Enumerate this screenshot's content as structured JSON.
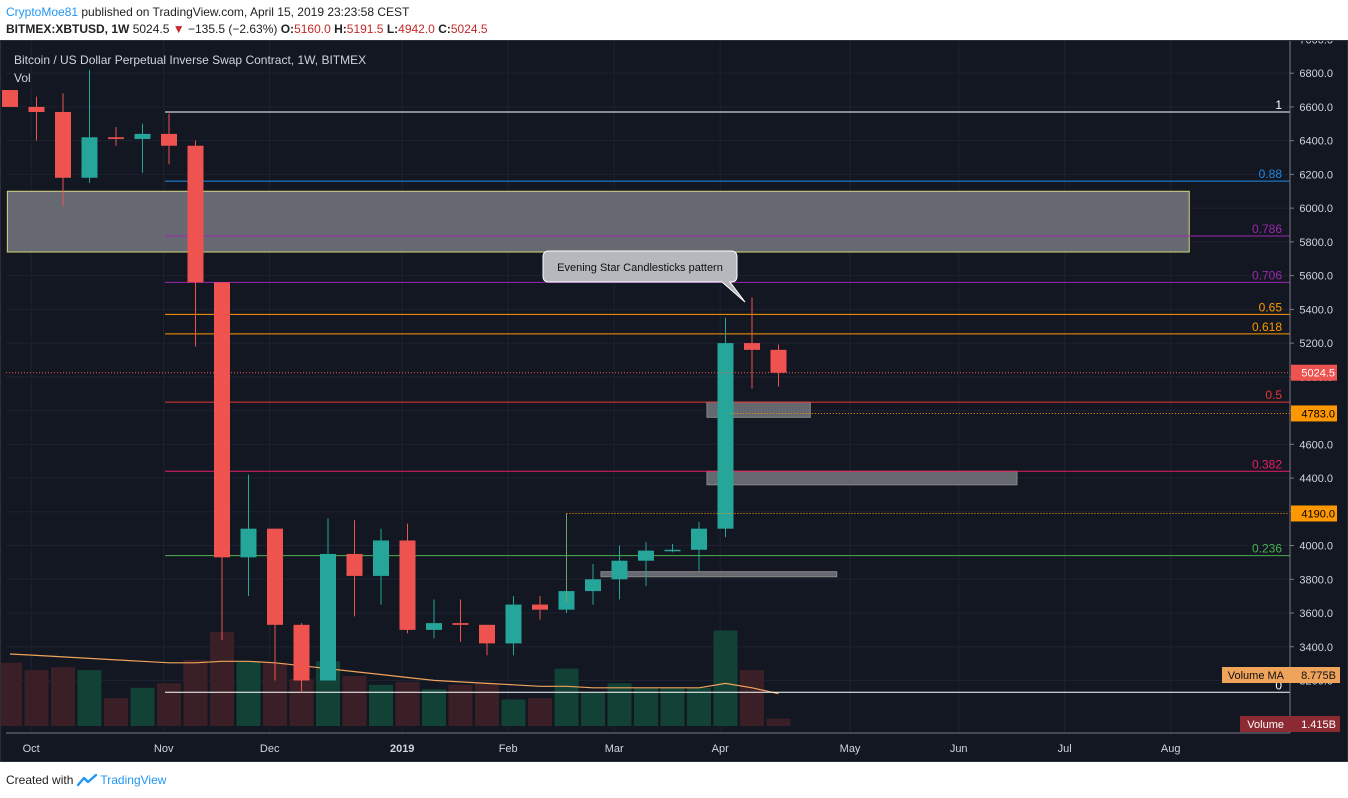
{
  "header": {
    "author": "CryptoMoe81",
    "published": " published on TradingView.com, April 15, 2019 23:23:58 CEST",
    "symbol": "BITMEX:XBTUSD, 1W",
    "last": "5024.5",
    "change": "−135.5 (−2.63%)",
    "o_label": "O:",
    "o": "5160.0",
    "h_label": "H:",
    "h": "5191.5",
    "l_label": "L:",
    "l": "4942.0",
    "c_label": "C:",
    "c": "5024.5"
  },
  "footer": {
    "created_with": "Created with",
    "brand": "TradingView"
  },
  "colors": {
    "background": "#131722",
    "up": "#26a69a",
    "down": "#ef5350",
    "grid": "#1e2230",
    "axis_text": "#d1d4dc"
  },
  "chart_data": {
    "type": "candlestick",
    "title": "Bitcoin / US Dollar Perpetual Inverse Swap Contract, 1W, BITMEX",
    "subtitle": "Vol",
    "ylim": [
      3100,
      7050
    ],
    "y_ticks": [
      3200,
      3400,
      3600,
      3800,
      4000,
      4200,
      4400,
      4600,
      4800,
      5000,
      5200,
      5400,
      5600,
      5800,
      6000,
      6200,
      6400,
      6600,
      6800,
      7000
    ],
    "x_labels": [
      "Oct",
      "Nov",
      "Dec",
      "2019",
      "Feb",
      "Mar",
      "Apr",
      "May",
      "Jun",
      "Jul",
      "Aug"
    ],
    "candles": [
      {
        "o": 6700,
        "h": 6700,
        "l": 6600,
        "c": 6600
      },
      {
        "o": 6600,
        "h": 6660,
        "l": 6400,
        "c": 6570
      },
      {
        "o": 6570,
        "h": 6680,
        "l": 6010,
        "c": 6180
      },
      {
        "o": 6180,
        "h": 6820,
        "l": 6150,
        "c": 6420
      },
      {
        "o": 6420,
        "h": 6480,
        "l": 6370,
        "c": 6410
      },
      {
        "o": 6410,
        "h": 6500,
        "l": 6210,
        "c": 6440
      },
      {
        "o": 6440,
        "h": 6560,
        "l": 6260,
        "c": 6370
      },
      {
        "o": 6370,
        "h": 6400,
        "l": 5180,
        "c": 5560
      },
      {
        "o": 5560,
        "h": 5560,
        "l": 3440,
        "c": 3930
      },
      {
        "o": 3930,
        "h": 4420,
        "l": 3700,
        "c": 4100
      },
      {
        "o": 4100,
        "h": 4100,
        "l": 3200,
        "c": 3530
      },
      {
        "o": 3530,
        "h": 3540,
        "l": 3130,
        "c": 3200
      },
      {
        "o": 3200,
        "h": 4160,
        "l": 3200,
        "c": 3950
      },
      {
        "o": 3950,
        "h": 4150,
        "l": 3580,
        "c": 3820
      },
      {
        "o": 3820,
        "h": 4100,
        "l": 3650,
        "c": 4030
      },
      {
        "o": 4030,
        "h": 4130,
        "l": 3480,
        "c": 3500
      },
      {
        "o": 3500,
        "h": 3680,
        "l": 3450,
        "c": 3540
      },
      {
        "o": 3540,
        "h": 3680,
        "l": 3430,
        "c": 3530
      },
      {
        "o": 3530,
        "h": 3530,
        "l": 3350,
        "c": 3420
      },
      {
        "o": 3420,
        "h": 3700,
        "l": 3350,
        "c": 3650
      },
      {
        "o": 3650,
        "h": 3700,
        "l": 3560,
        "c": 3620
      },
      {
        "o": 3620,
        "h": 4190,
        "l": 3600,
        "c": 3730
      },
      {
        "o": 3730,
        "h": 3890,
        "l": 3650,
        "c": 3800
      },
      {
        "o": 3800,
        "h": 4000,
        "l": 3680,
        "c": 3910
      },
      {
        "o": 3910,
        "h": 4020,
        "l": 3760,
        "c": 3970
      },
      {
        "o": 3970,
        "h": 4010,
        "l": 3960,
        "c": 3975
      },
      {
        "o": 3975,
        "h": 4140,
        "l": 3850,
        "c": 4100
      },
      {
        "o": 4100,
        "h": 5350,
        "l": 4050,
        "c": 5200
      },
      {
        "o": 5200,
        "h": 5470,
        "l": 4930,
        "c": 5160
      },
      {
        "o": 5160,
        "h": 5191.5,
        "l": 4942,
        "c": 5024.5
      }
    ],
    "volume": [
      {
        "v": 4.3,
        "up": false
      },
      {
        "v": 3.8,
        "up": false
      },
      {
        "v": 4.0,
        "up": false
      },
      {
        "v": 3.8,
        "up": true
      },
      {
        "v": 1.9,
        "up": false
      },
      {
        "v": 2.6,
        "up": true
      },
      {
        "v": 2.9,
        "up": false
      },
      {
        "v": 4.5,
        "up": false
      },
      {
        "v": 6.4,
        "up": false
      },
      {
        "v": 4.4,
        "up": true
      },
      {
        "v": 4.3,
        "up": false
      },
      {
        "v": 3.2,
        "up": false
      },
      {
        "v": 4.4,
        "up": true
      },
      {
        "v": 3.4,
        "up": false
      },
      {
        "v": 2.8,
        "up": true
      },
      {
        "v": 3.0,
        "up": false
      },
      {
        "v": 2.5,
        "up": true
      },
      {
        "v": 2.8,
        "up": false
      },
      {
        "v": 2.9,
        "up": false
      },
      {
        "v": 1.8,
        "up": true
      },
      {
        "v": 1.9,
        "up": false
      },
      {
        "v": 3.9,
        "up": true
      },
      {
        "v": 2.3,
        "up": true
      },
      {
        "v": 2.9,
        "up": true
      },
      {
        "v": 2.6,
        "up": true
      },
      {
        "v": 2.6,
        "up": true
      },
      {
        "v": 2.6,
        "up": true
      },
      {
        "v": 6.5,
        "up": true
      },
      {
        "v": 3.8,
        "up": false
      },
      {
        "v": 0.5,
        "up": false
      }
    ],
    "volume_ma": [
      4.9,
      4.8,
      4.7,
      4.6,
      4.5,
      4.4,
      4.3,
      4.3,
      4.4,
      4.4,
      4.3,
      4.1,
      3.9,
      3.7,
      3.5,
      3.3,
      3.1,
      3.0,
      2.9,
      2.8,
      2.7,
      2.7,
      2.6,
      2.6,
      2.6,
      2.6,
      2.6,
      2.9,
      2.6,
      2.2
    ],
    "fib_levels": [
      {
        "label": "1",
        "price": 6570,
        "color": "#ffffff"
      },
      {
        "label": "0.88",
        "price": 6160,
        "color": "#1e88e5"
      },
      {
        "label": "0.786",
        "price": 5835,
        "color": "#9c27b0"
      },
      {
        "label": "0.706",
        "price": 5560,
        "color": "#9c27b0"
      },
      {
        "label": "0.65",
        "price": 5370,
        "color": "#ff9800"
      },
      {
        "label": "0.618",
        "price": 5255,
        "color": "#ff9800"
      },
      {
        "label": "0.5",
        "price": 4850,
        "color": "#e53935"
      },
      {
        "label": "0.382",
        "price": 4440,
        "color": "#e91e63"
      },
      {
        "label": "0.236",
        "price": 3940,
        "color": "#4caf50"
      },
      {
        "label": "0",
        "price": 3130,
        "color": "#ffffff"
      }
    ],
    "price_labels": [
      {
        "text": "5024.5",
        "price": 5024.5,
        "bg": "#ef5350",
        "fg": "#ffffff"
      },
      {
        "text": "4783.0",
        "price": 4783,
        "bg": "#ff9800",
        "fg": "#000000"
      },
      {
        "text": "4190.0",
        "price": 4190,
        "bg": "#ff9800",
        "fg": "#000000"
      }
    ],
    "zones": [
      {
        "week_from": -0.1,
        "week_to": 44.5,
        "price_from": 5740,
        "price_to": 6100,
        "fill": "#6b6e77",
        "stroke": "#d4d87a"
      },
      {
        "week_from": 26.3,
        "week_to": 30.2,
        "price_from": 4760,
        "price_to": 4850,
        "fill": "#6a6d75",
        "stroke": "#888"
      },
      {
        "week_from": 26.3,
        "week_to": 38.0,
        "price_from": 4360,
        "price_to": 4440,
        "fill": "#6a6d75",
        "stroke": "#888"
      },
      {
        "week_from": 22.3,
        "week_to": 31.2,
        "price_from": 3815,
        "price_to": 3845,
        "fill": "#6a6d75",
        "stroke": "#888"
      }
    ],
    "annotation": {
      "text": "Evening Star Candlesticks pattern"
    },
    "volume_ma_label": {
      "name": "Volume MA",
      "value": "8.775B"
    },
    "volume_label": {
      "name": "Volume",
      "value": "1.415B"
    },
    "fib_label_1": "1",
    "fib_label_0": "0"
  }
}
